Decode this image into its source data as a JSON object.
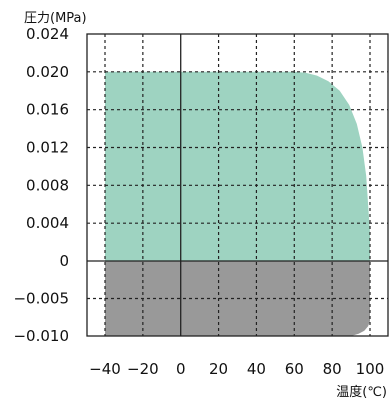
{
  "chart_data": {
    "type": "area",
    "title": "",
    "ylabel": "圧力(MPa)",
    "xlabel": "温度(℃)",
    "xlim": [
      -40,
      100
    ],
    "ylim": [
      -0.01,
      0.024
    ],
    "x_ticks": [
      -40,
      -20,
      0,
      20,
      40,
      60,
      80,
      100
    ],
    "x_tick_labels": [
      "−40",
      "−20",
      "0",
      "20",
      "40",
      "60",
      "80",
      "100"
    ],
    "y_ticks": [
      0.024,
      0.02,
      0.016,
      0.012,
      0.008,
      0.004,
      0,
      -0.005,
      -0.01
    ],
    "y_tick_labels": [
      "0.024",
      "0.020",
      "0.016",
      "0.012",
      "0.008",
      "0.004",
      "0",
      "−0.005",
      "−0.010"
    ],
    "grid": true,
    "series": [
      {
        "color": "#9ed3c1",
        "boundary": [
          [
            -40,
            0
          ],
          [
            -40,
            0.02
          ],
          [
            60,
            0.02
          ],
          [
            66,
            0.0199
          ],
          [
            72,
            0.0196
          ],
          [
            78,
            0.019
          ],
          [
            84,
            0.018
          ],
          [
            89,
            0.0165
          ],
          [
            93,
            0.0145
          ],
          [
            96,
            0.012
          ],
          [
            98,
            0.009
          ],
          [
            99,
            0.006
          ],
          [
            100,
            0.003
          ],
          [
            100,
            0
          ]
        ]
      },
      {
        "color": "#999999",
        "boundary": [
          [
            -40,
            0
          ],
          [
            100,
            0
          ],
          [
            100,
            -0.008
          ],
          [
            99,
            -0.0087
          ],
          [
            97,
            -0.0093
          ],
          [
            94,
            -0.0097
          ],
          [
            90,
            -0.01
          ],
          [
            80,
            -0.01
          ],
          [
            -40,
            -0.01
          ]
        ]
      }
    ]
  }
}
